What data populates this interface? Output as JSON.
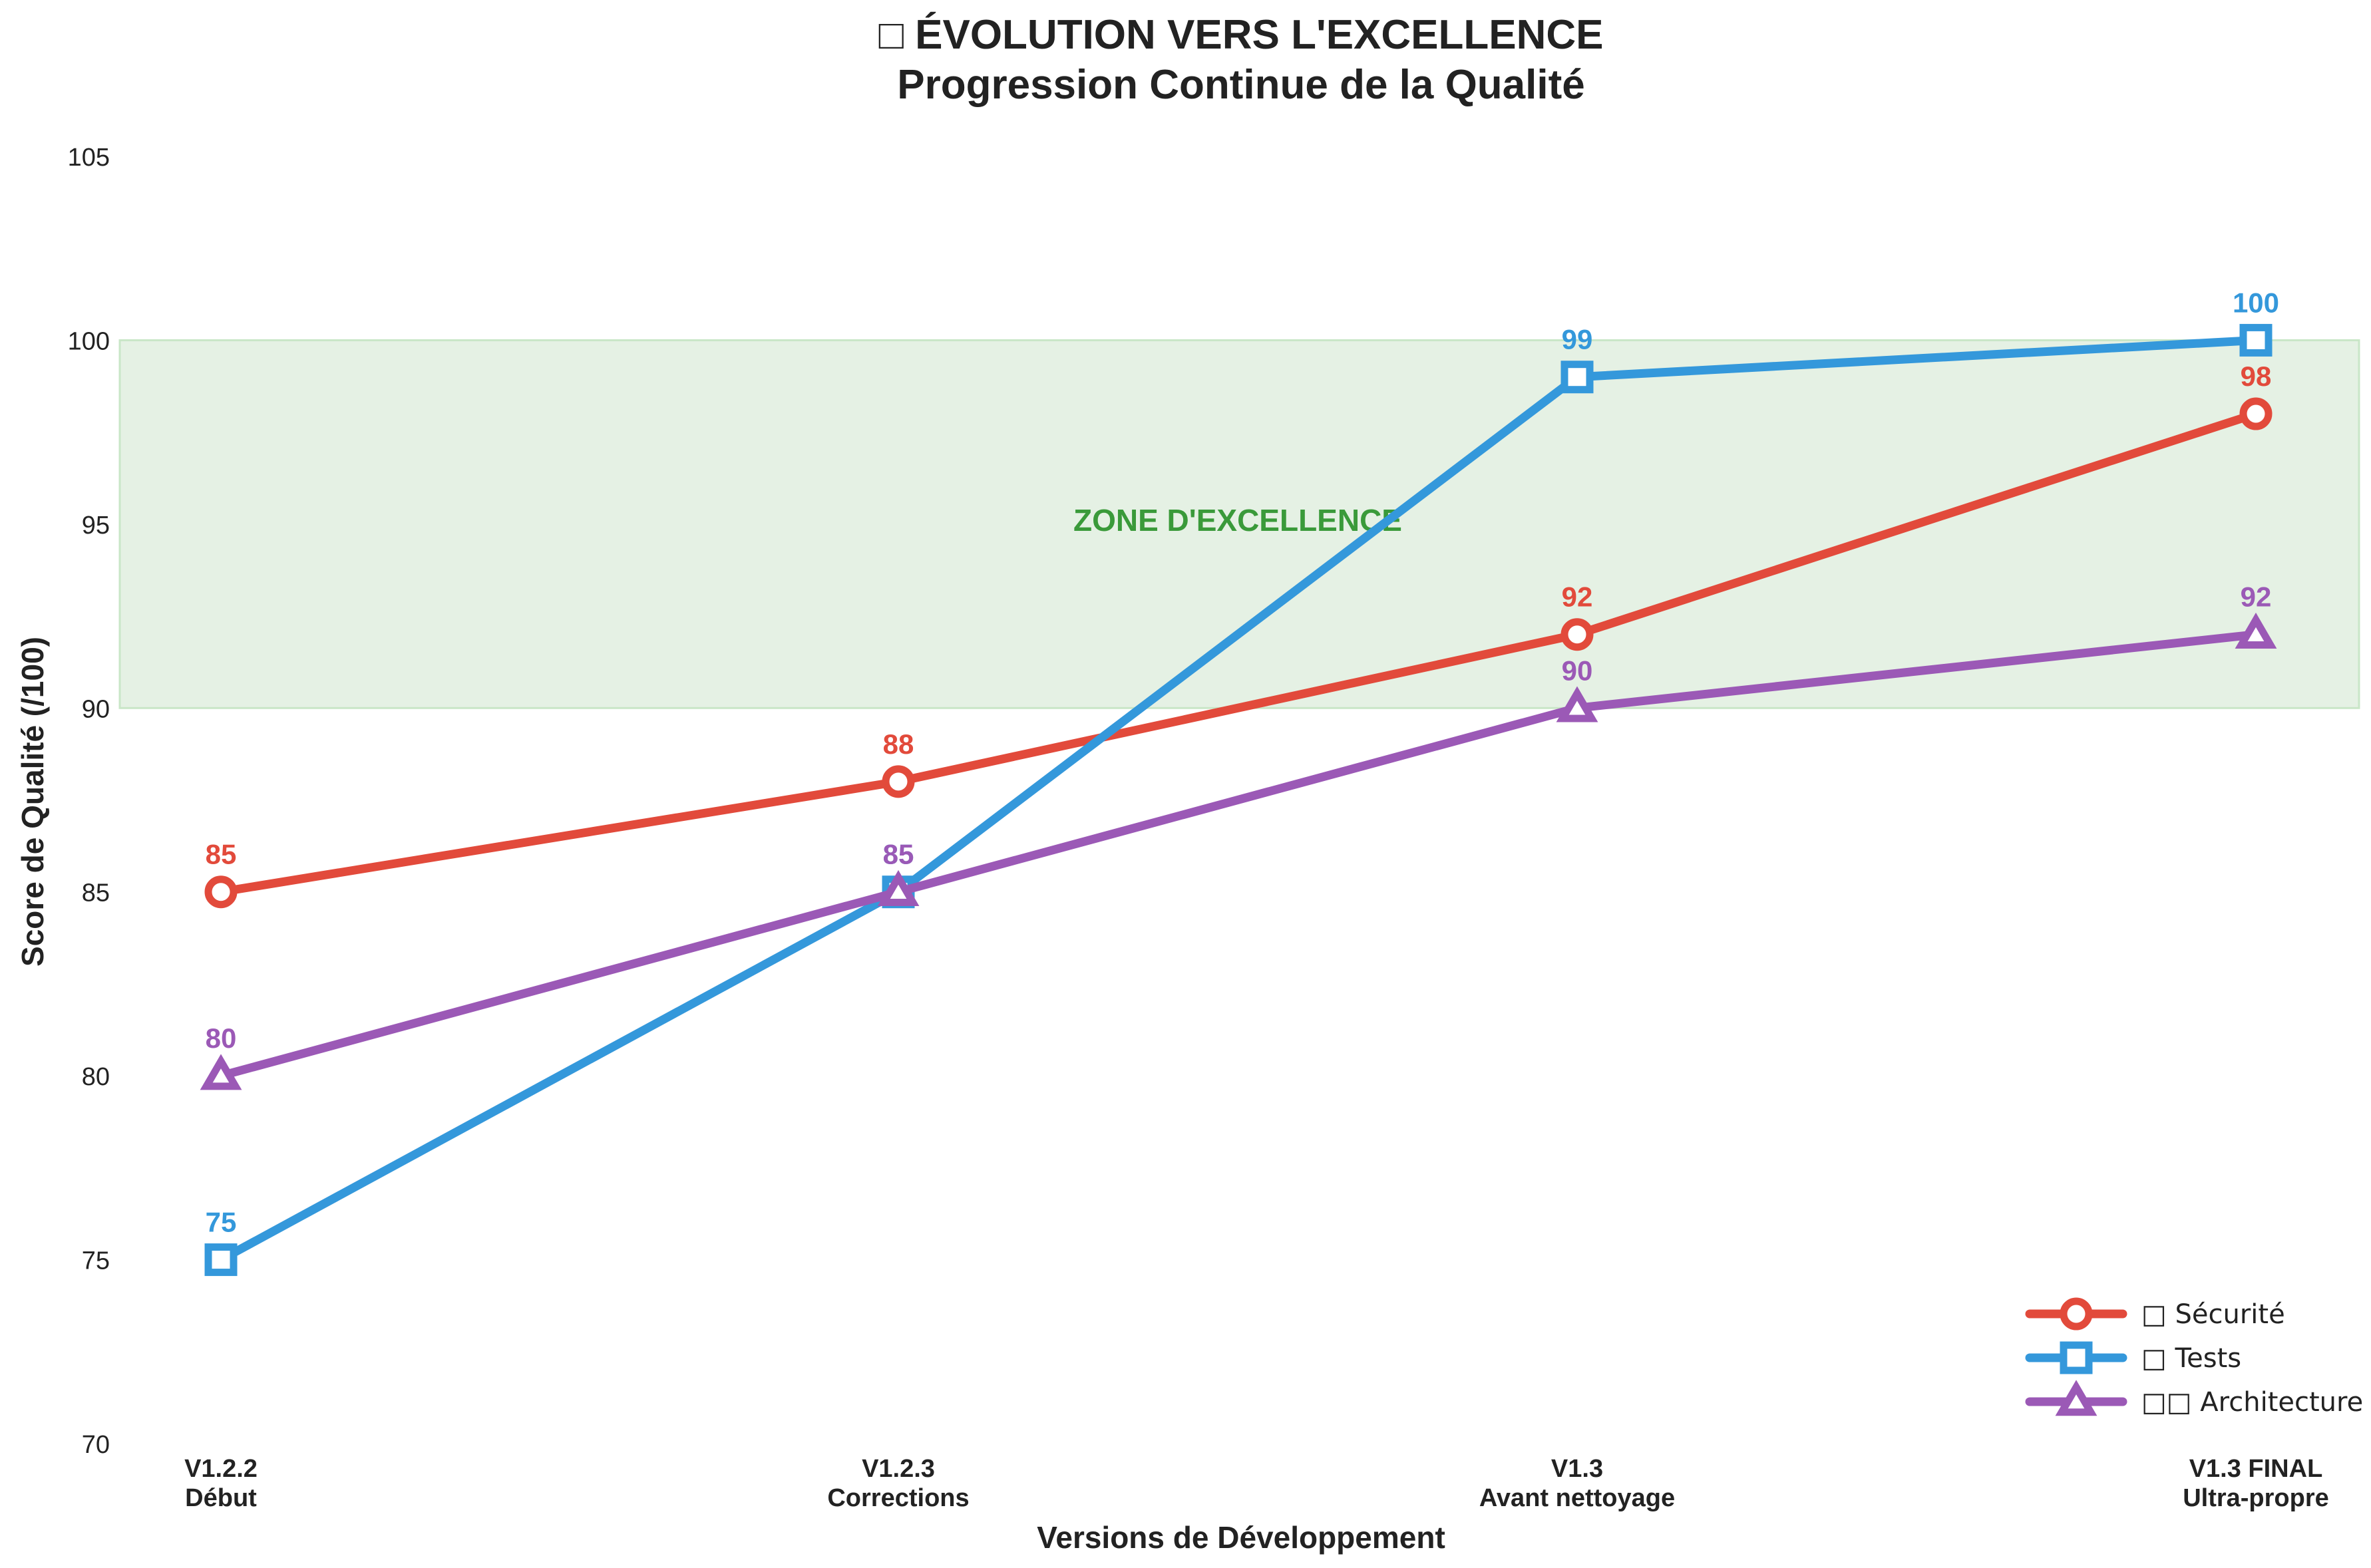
{
  "chart_data": {
    "type": "line",
    "title": "□ ÉVOLUTION VERS L'EXCELLENCE",
    "subtitle": "Progression Continue de la Qualité",
    "xlabel": "Versions de Développement",
    "ylabel": "Score de Qualité (/100)",
    "ylim": [
      70,
      105
    ],
    "yticks": [
      "70",
      "75",
      "80",
      "85",
      "90",
      "95",
      "100",
      "105"
    ],
    "categories": [
      [
        "V1.2.2",
        "Début"
      ],
      [
        "V1.2.3",
        "Corrections"
      ],
      [
        "V1.3",
        "Avant nettoyage"
      ],
      [
        "V1.3 FINAL",
        "Ultra-propre"
      ]
    ],
    "band": {
      "y0": 90,
      "y1": 100,
      "label": "ZONE D'EXCELLENCE",
      "color": "#e5f1e4",
      "label_color": "#3a9a3a"
    },
    "grid": false,
    "legend_position": "bottom-right",
    "series": [
      {
        "name": "□ Sécurité",
        "values": [
          85,
          88,
          92,
          98
        ],
        "color": "#e24a3b",
        "marker": "circle"
      },
      {
        "name": "□ Tests",
        "values": [
          75,
          85,
          99,
          100
        ],
        "color": "#3498db",
        "marker": "square"
      },
      {
        "name": "□□ Architecture",
        "values": [
          80,
          85,
          90,
          92
        ],
        "color": "#9b59b6",
        "marker": "triangle"
      }
    ]
  }
}
